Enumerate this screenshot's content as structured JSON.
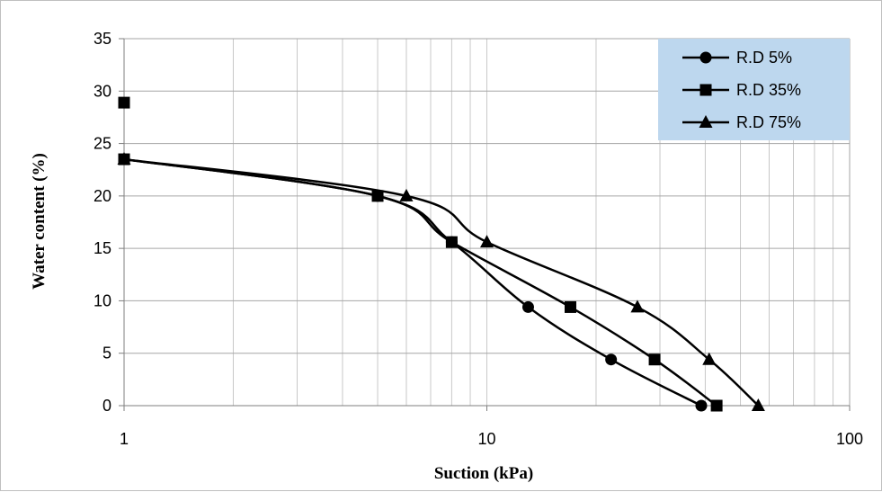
{
  "chart_data": {
    "type": "line",
    "title": "",
    "xlabel": "Suction (kPa)",
    "ylabel": "Water content (%)",
    "x_scale": "log",
    "xlim": [
      1,
      100
    ],
    "ylim": [
      0,
      35
    ],
    "x_ticks": [
      1,
      10,
      100
    ],
    "x_tick_labels": [
      "1",
      "10",
      "100"
    ],
    "y_ticks": [
      0,
      5,
      10,
      15,
      20,
      25,
      30,
      35
    ],
    "y_tick_labels": [
      "0",
      "5",
      "10",
      "15",
      "20",
      "25",
      "30",
      "35"
    ],
    "grid": true,
    "legend_position": "top-right",
    "colors": {
      "line": "#000000",
      "grid": "#c8c8c8",
      "legend_bg": "#bdd7ee"
    },
    "series": [
      {
        "name": "R.D 5%",
        "marker": "circle",
        "x": [
          1,
          5,
          8,
          13,
          22,
          39
        ],
        "y": [
          23.5,
          20,
          15.6,
          9.4,
          4.4,
          0
        ]
      },
      {
        "name": "R.D 35%",
        "marker": "square",
        "x": [
          1,
          5,
          8,
          17,
          29,
          43
        ],
        "y": [
          23.5,
          20,
          15.6,
          9.4,
          4.4,
          0
        ]
      },
      {
        "name": "R.D 75%",
        "marker": "triangle",
        "x": [
          1,
          6,
          10,
          26,
          41,
          56
        ],
        "y": [
          23.5,
          20,
          15.6,
          9.4,
          4.4,
          0
        ]
      }
    ],
    "extra_points": [
      {
        "series": "R.D 35%",
        "marker": "square",
        "x": 1,
        "y": 28.9
      }
    ]
  }
}
